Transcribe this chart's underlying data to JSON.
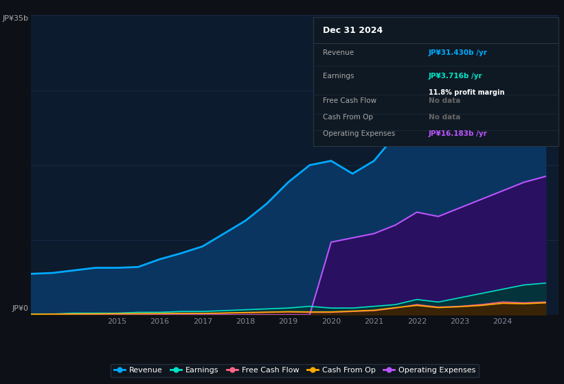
{
  "background_color": "#0d1117",
  "plot_bg_color": "#0d1b2e",
  "grid_color": "#1e3050",
  "years": [
    2013,
    2013.5,
    2014,
    2014.5,
    2015,
    2015.5,
    2016,
    2016.5,
    2017,
    2017.5,
    2018,
    2018.5,
    2019,
    2019.5,
    2020,
    2020.5,
    2021,
    2021.5,
    2022,
    2022.5,
    2023,
    2023.5,
    2024,
    2024.5,
    2025
  ],
  "revenue": [
    4.8,
    4.9,
    5.2,
    5.5,
    5.5,
    5.6,
    6.5,
    7.2,
    8.0,
    9.5,
    11.0,
    13.0,
    15.5,
    17.5,
    18.0,
    16.5,
    18.0,
    21.0,
    23.5,
    22.5,
    24.0,
    26.0,
    28.5,
    30.5,
    31.4
  ],
  "earnings": [
    0.1,
    0.1,
    0.2,
    0.2,
    0.2,
    0.3,
    0.3,
    0.4,
    0.4,
    0.5,
    0.6,
    0.7,
    0.8,
    1.0,
    0.8,
    0.8,
    1.0,
    1.2,
    1.8,
    1.5,
    2.0,
    2.5,
    3.0,
    3.5,
    3.716
  ],
  "fcf": [
    0.05,
    0.06,
    0.1,
    0.1,
    0.12,
    0.12,
    0.13,
    0.15,
    0.15,
    0.2,
    0.25,
    0.3,
    0.35,
    0.3,
    0.3,
    0.4,
    0.5,
    0.8,
    1.2,
    0.9,
    1.0,
    1.2,
    1.5,
    1.4,
    1.5
  ],
  "cop": [
    0.08,
    0.09,
    0.12,
    0.13,
    0.14,
    0.15,
    0.16,
    0.18,
    0.18,
    0.22,
    0.28,
    0.32,
    0.38,
    0.35,
    0.35,
    0.45,
    0.55,
    0.85,
    1.1,
    0.85,
    0.95,
    1.1,
    1.35,
    1.3,
    1.4
  ],
  "opex": [
    0.0,
    0.0,
    0.0,
    0.0,
    0.0,
    0.0,
    0.0,
    0.0,
    0.0,
    0.0,
    0.0,
    0.0,
    0.0,
    0.0,
    8.5,
    9.0,
    9.5,
    10.5,
    12.0,
    11.5,
    12.5,
    13.5,
    14.5,
    15.5,
    16.183
  ],
  "revenue_color": "#00aaff",
  "revenue_fill": "#0a3560",
  "earnings_color": "#00e5c8",
  "earnings_fill": "#003838",
  "fcf_color": "#ff6688",
  "fcf_fill": "#3a1020",
  "cop_color": "#ffaa00",
  "cop_fill": "#3a2800",
  "opex_color": "#bb55ff",
  "opex_fill": "#2a1060",
  "ylim": [
    0,
    35
  ],
  "xlim": [
    2013.0,
    2025.3
  ],
  "xticks": [
    2015,
    2016,
    2017,
    2018,
    2019,
    2020,
    2021,
    2022,
    2023,
    2024
  ],
  "legend": [
    {
      "label": "Revenue",
      "color": "#00aaff"
    },
    {
      "label": "Earnings",
      "color": "#00e5c8"
    },
    {
      "label": "Free Cash Flow",
      "color": "#ff6688"
    },
    {
      "label": "Cash From Op",
      "color": "#ffaa00"
    },
    {
      "label": "Operating Expenses",
      "color": "#bb55ff"
    }
  ],
  "tooltip": {
    "date": "Dec 31 2024",
    "rows": [
      {
        "label": "Revenue",
        "value": "JP¥31.430b /yr",
        "value_color": "#00aaff",
        "sub": null
      },
      {
        "label": "Earnings",
        "value": "JP¥3.716b /yr",
        "value_color": "#00e5c8",
        "sub": "11.8% profit margin"
      },
      {
        "label": "Free Cash Flow",
        "value": "No data",
        "value_color": "#666666",
        "sub": null
      },
      {
        "label": "Cash From Op",
        "value": "No data",
        "value_color": "#666666",
        "sub": null
      },
      {
        "label": "Operating Expenses",
        "value": "JP¥16.183b /yr",
        "value_color": "#bb55ff",
        "sub": null
      }
    ]
  }
}
